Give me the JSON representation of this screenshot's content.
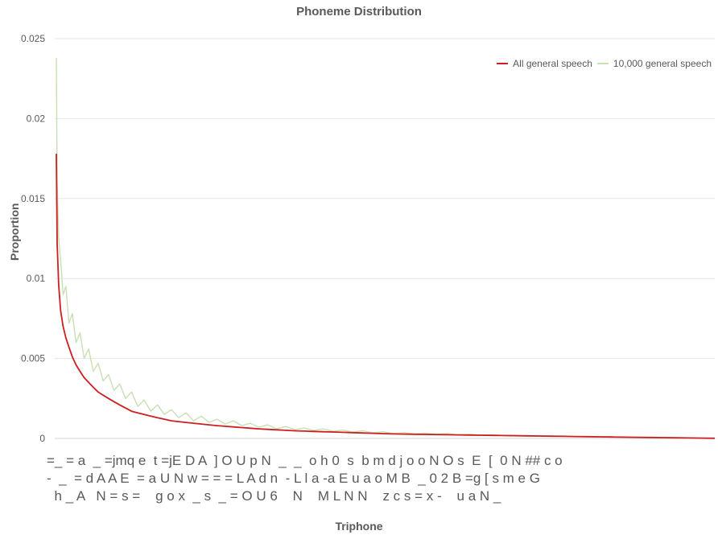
{
  "chart_data": {
    "type": "line",
    "title": "Phoneme Distribution",
    "xlabel": "Triphone",
    "ylabel": "Proportion",
    "ylim": [
      0,
      0.025
    ],
    "yticks": [
      "0",
      "0.005",
      "0.01",
      "0.015",
      "0.02",
      "0.025"
    ],
    "grid": true,
    "legend_position": "top-right",
    "x_tick_rows": [
      "=_ = a  _ =jmq e  t =jE D A  ] O U p N  _  _  o h 0  s  b m d j o o N O s  E  [  0 N ## c o",
      "-  _  = d A A E  = a U N w = = = L A d n  - L l a -a E u a o M B  _ 0 2 B =g [ s m e G",
      "  h _ A   N = s =    g o x  _ s  _ = O U 6    N    M L N N    z c s = x -    u a N _"
    ],
    "series": [
      {
        "name": "All general speech",
        "color": "#cc1f1f",
        "samples": [
          0.0178,
          0.0122,
          0.0096,
          0.008,
          0.007,
          0.0063,
          0.0057,
          0.0051,
          0.0046,
          0.0042,
          0.0038,
          0.0035,
          0.0032,
          0.0029,
          0.0027,
          0.0025,
          0.0023,
          0.0021,
          0.0019,
          0.0017,
          0.0016,
          0.0015,
          0.0014,
          0.0013,
          0.0012,
          0.0011,
          0.00105,
          0.001,
          0.00095,
          0.0009,
          0.00085,
          0.0008,
          0.00076,
          0.00072,
          0.00068,
          0.00064,
          0.0006,
          0.00057,
          0.00054,
          0.00051,
          0.00048,
          0.00046,
          0.00044,
          0.00042,
          0.0004,
          0.00038,
          0.00036,
          0.00034,
          0.00032,
          0.0003,
          0.00028,
          0.00027,
          0.00026,
          0.00025,
          0.00024,
          0.00023,
          0.00022,
          0.00021,
          0.0002,
          0.00019,
          0.00018,
          0.00017,
          0.00016,
          0.00015,
          0.00014,
          0.00013,
          0.00012,
          0.00011,
          0.0001,
          9e-05,
          8e-05,
          7e-05,
          6e-05,
          5e-05,
          4e-05,
          3e-05,
          2e-05,
          1e-05
        ]
      },
      {
        "name": "10,000 general speech",
        "color": "#c8e0b4",
        "samples": [
          0.0238,
          0.016,
          0.0125,
          0.0112,
          0.009,
          0.0095,
          0.0072,
          0.0078,
          0.006,
          0.0066,
          0.005,
          0.0056,
          0.0042,
          0.0047,
          0.0036,
          0.004,
          0.003,
          0.0034,
          0.0025,
          0.0029,
          0.002,
          0.0024,
          0.0017,
          0.0021,
          0.0015,
          0.0018,
          0.0013,
          0.0016,
          0.0011,
          0.0014,
          0.001,
          0.0012,
          0.0009,
          0.0011,
          0.0008,
          0.00095,
          0.0007,
          0.00085,
          0.0006,
          0.00075,
          0.00055,
          0.00065,
          0.0005,
          0.0006,
          0.00045,
          0.00052,
          0.0004,
          0.00048,
          0.00035,
          0.00042,
          0.0003,
          0.00036,
          0.00028,
          0.00033,
          0.00025,
          0.0003,
          0.00022,
          0.00026,
          0.0002,
          0.00023,
          0.00018,
          0.0002,
          0.00015,
          0.00018,
          0.00013,
          0.00015,
          0.0001,
          0.00012,
          8e-05,
          0.0001,
          6e-05,
          8e-05,
          5e-05,
          6e-05,
          4e-05,
          4e-05,
          3e-05,
          2e-05
        ]
      }
    ]
  }
}
